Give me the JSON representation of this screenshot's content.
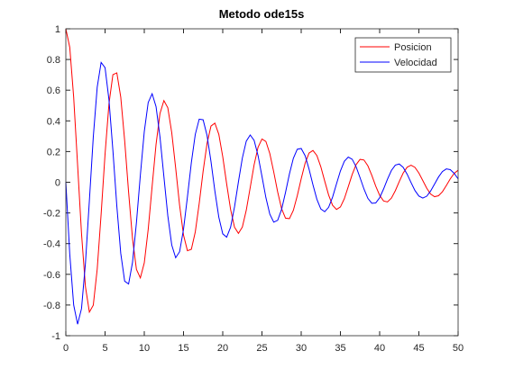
{
  "chart_data": {
    "type": "line",
    "title": "Metodo ode15s",
    "x": [
      0,
      0.5,
      1,
      1.5,
      2,
      2.5,
      3,
      3.5,
      4,
      4.5,
      5,
      5.5,
      6,
      6.5,
      7,
      7.5,
      8,
      8.5,
      9,
      9.5,
      10,
      10.5,
      11,
      11.5,
      12,
      12.5,
      13,
      13.5,
      14,
      14.5,
      15,
      15.5,
      16,
      16.5,
      17,
      17.5,
      18,
      18.5,
      19,
      19.5,
      20,
      20.5,
      21,
      21.5,
      22,
      22.5,
      23,
      23.5,
      24,
      24.5,
      25,
      25.5,
      26,
      26.5,
      27,
      27.5,
      28,
      28.5,
      29,
      29.5,
      30,
      30.5,
      31,
      31.5,
      32,
      32.5,
      33,
      33.5,
      34,
      34.5,
      35,
      35.5,
      36,
      36.5,
      37,
      37.5,
      38,
      38.5,
      39,
      39.5,
      40,
      40.5,
      41,
      41.5,
      42,
      42.5,
      43,
      43.5,
      44,
      44.5,
      45,
      45.5,
      46,
      46.5,
      47,
      47.5,
      48,
      48.5,
      49,
      49.5,
      50
    ],
    "series": [
      {
        "name": "Posicion",
        "color": "#ff0000",
        "values": [
          1,
          0.879,
          0.554,
          0.112,
          -0.335,
          -0.681,
          -0.846,
          -0.801,
          -0.566,
          -0.207,
          0.184,
          0.512,
          0.701,
          0.713,
          0.555,
          0.271,
          -0.064,
          -0.368,
          -0.568,
          -0.623,
          -0.525,
          -0.307,
          -0.026,
          0.247,
          0.448,
          0.532,
          0.485,
          0.323,
          0.093,
          -0.149,
          -0.344,
          -0.446,
          -0.437,
          -0.324,
          -0.138,
          0.072,
          0.253,
          0.366,
          0.385,
          0.312,
          0.167,
          -0.011,
          -0.177,
          -0.293,
          -0.333,
          -0.292,
          -0.182,
          -0.035,
          0.114,
          0.228,
          0.282,
          0.266,
          0.187,
          0.067,
          -0.063,
          -0.172,
          -0.234,
          -0.237,
          -0.183,
          -0.088,
          0.023,
          0.124,
          0.19,
          0.207,
          0.174,
          0.101,
          0.007,
          -0.084,
          -0.15,
          -0.177,
          -0.161,
          -0.107,
          -0.029,
          0.051,
          0.115,
          0.149,
          0.145,
          0.107,
          0.045,
          -0.025,
          -0.085,
          -0.122,
          -0.128,
          -0.103,
          -0.055,
          0.005,
          0.06,
          0.098,
          0.111,
          0.097,
          0.06,
          0.011,
          -0.039,
          -0.077,
          -0.094,
          -0.088,
          -0.062,
          -0.021,
          0.022,
          0.058,
          0.078
        ]
      },
      {
        "name": "Velocidad",
        "color": "#0000ff",
        "values": [
          0,
          -0.468,
          -0.8,
          -0.925,
          -0.823,
          -0.528,
          -0.121,
          0.295,
          0.62,
          0.781,
          0.747,
          0.536,
          0.207,
          -0.155,
          -0.463,
          -0.645,
          -0.663,
          -0.522,
          -0.263,
          0.047,
          0.33,
          0.52,
          0.577,
          0.493,
          0.295,
          0.036,
          -0.219,
          -0.409,
          -0.492,
          -0.453,
          -0.307,
          -0.095,
          0.129,
          0.312,
          0.411,
          0.407,
          0.305,
          0.136,
          -0.058,
          -0.228,
          -0.336,
          -0.358,
          -0.293,
          -0.161,
          0.003,
          0.158,
          0.268,
          0.308,
          0.273,
          0.174,
          0.038,
          -0.1,
          -0.208,
          -0.26,
          -0.248,
          -0.177,
          -0.067,
          0.054,
          0.156,
          0.215,
          0.22,
          0.173,
          0.086,
          -0.017,
          -0.111,
          -0.174,
          -0.192,
          -0.163,
          -0.097,
          -0.01,
          0.074,
          0.137,
          0.164,
          0.15,
          0.101,
          0.03,
          -0.044,
          -0.105,
          -0.137,
          -0.135,
          -0.101,
          -0.044,
          0.02,
          0.077,
          0.112,
          0.119,
          0.097,
          0.053,
          -0.002,
          -0.054,
          -0.09,
          -0.103,
          -0.091,
          -0.057,
          -0.012,
          0.034,
          0.07,
          0.087,
          0.082,
          0.058,
          0.022
        ]
      }
    ],
    "xlim": [
      0,
      50
    ],
    "ylim": [
      -1,
      1
    ],
    "xticks": [
      0,
      5,
      10,
      15,
      20,
      25,
      30,
      35,
      40,
      45,
      50
    ],
    "yticks": [
      -1,
      -0.8,
      -0.6,
      -0.4,
      -0.2,
      0,
      0.2,
      0.4,
      0.6,
      0.8,
      1
    ],
    "grid": false,
    "legend": "northeast"
  }
}
